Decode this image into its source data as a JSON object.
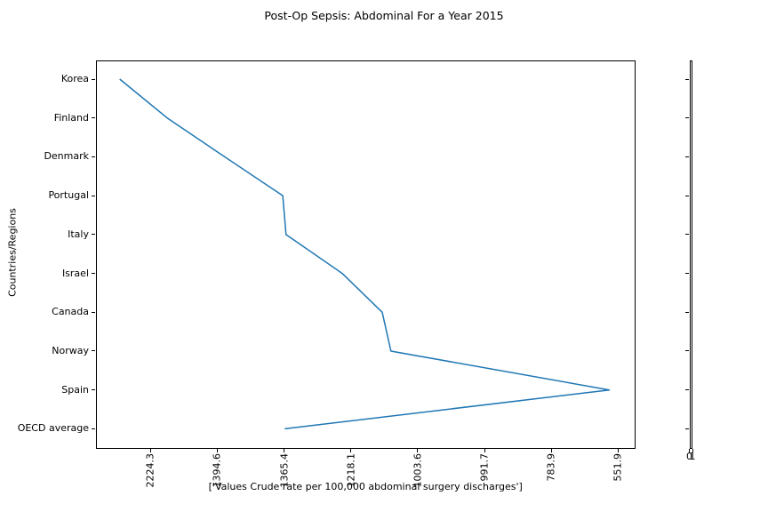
{
  "chart_data": {
    "type": "line",
    "title": "Post-Op Sepsis: Abdominal For a Year 2015",
    "xlabel": "['Values Crude rate per 100,000 abdominal surgery discharges']",
    "ylabel": "Countries/Regions",
    "categories": [
      "Korea",
      "Finland",
      "Denmark",
      "Portugal",
      "Italy",
      "Israel",
      "Canada",
      "Norway",
      "Spain",
      "OECD average"
    ],
    "x_tick_labels": [
      "2224.3",
      "1394.6",
      "1365.4",
      "1218.1",
      "1003.6",
      "991.7",
      "783.9",
      "551.9"
    ],
    "series": [
      {
        "name": "Crude rate per 100,000 abdominal surgery discharges",
        "x_positions_in_tick_units": [
          -0.46,
          0.25,
          1.11,
          1.98,
          2.03,
          2.87,
          3.47,
          3.6,
          6.87,
          2.01
        ]
      }
    ],
    "line_color": "#1f77b4",
    "grid": false,
    "legend": "none",
    "x_tick_rotation_degrees": 90,
    "secondary_axis": {
      "x_tick_labels": [
        "0",
        "1"
      ]
    }
  }
}
